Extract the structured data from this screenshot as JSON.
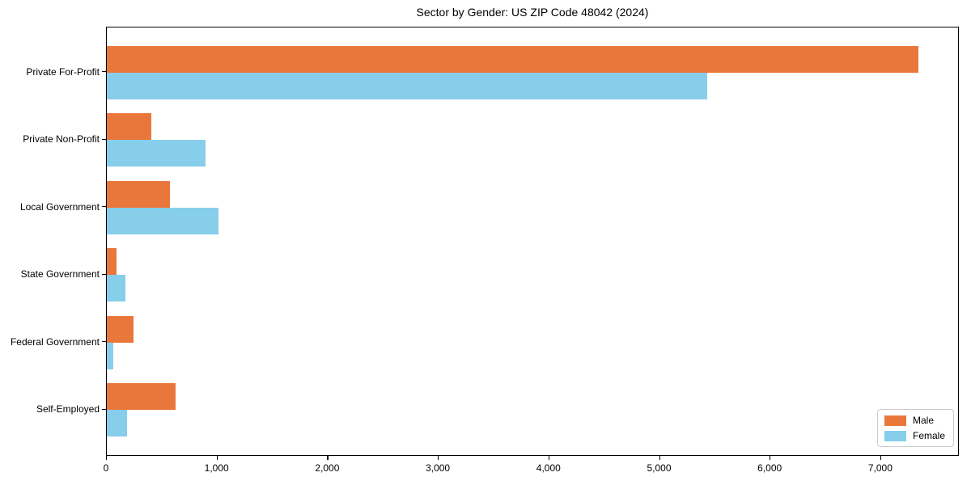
{
  "chart_data": {
    "type": "bar",
    "orientation": "horizontal",
    "title": "Sector by Gender: US ZIP Code 48042 (2024)",
    "categories": [
      "Private For-Profit",
      "Private Non-Profit",
      "Local Government",
      "State Government",
      "Federal Government",
      "Self-Employed"
    ],
    "series": [
      {
        "name": "Male",
        "color": "#e9773c",
        "values": [
          7340,
          400,
          570,
          85,
          240,
          620
        ]
      },
      {
        "name": "Female",
        "color": "#87ceeb",
        "values": [
          5430,
          890,
          1010,
          170,
          55,
          180
        ]
      }
    ],
    "xlim": [
      0,
      7710
    ],
    "xticks": [
      0,
      1000,
      2000,
      3000,
      4000,
      5000,
      6000,
      7000
    ],
    "xtick_labels": [
      "0",
      "1,000",
      "2,000",
      "3,000",
      "4,000",
      "5,000",
      "6,000",
      "7,000"
    ],
    "ylabel": "",
    "xlabel": "",
    "grid": false,
    "legend_position": "lower right"
  }
}
